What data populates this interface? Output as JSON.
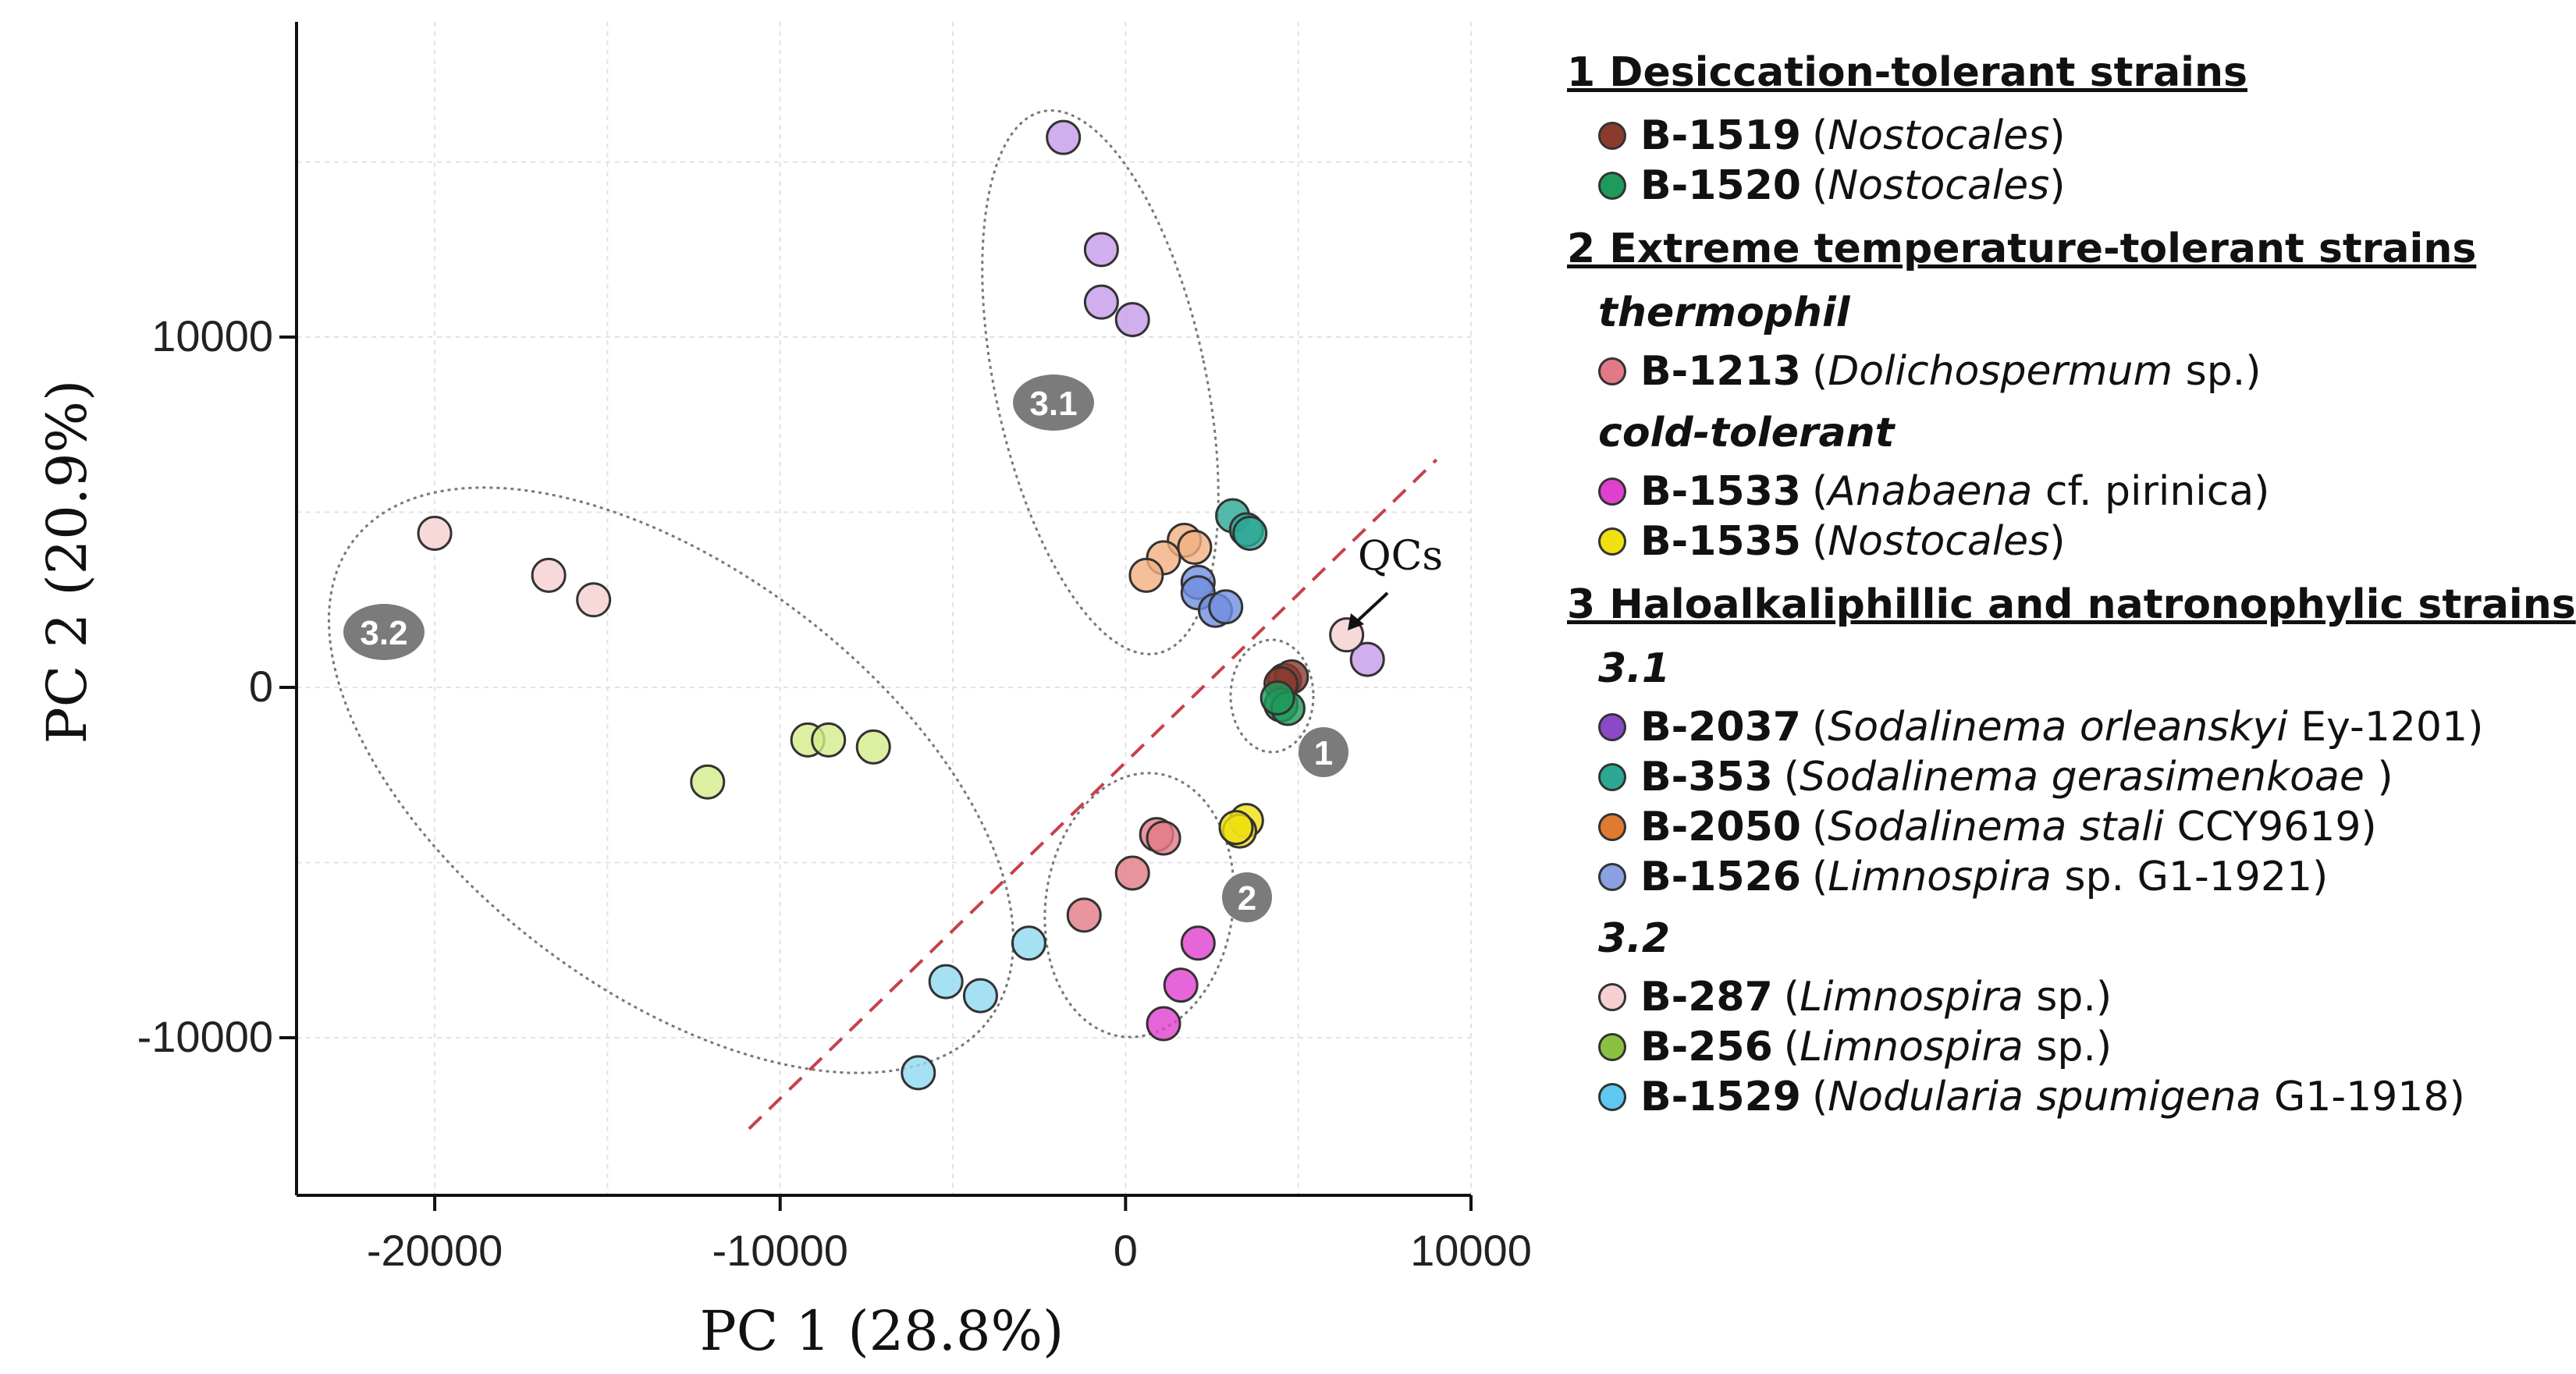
{
  "chart_data": {
    "type": "scatter",
    "title": "",
    "xlabel": "PC 1 (28.8%)",
    "ylabel": "PC 2 (20.9%)",
    "xlim": [
      -24000,
      10000
    ],
    "ylim": [
      -14500,
      19000
    ],
    "x_ticks": [
      -20000,
      -10000,
      0,
      10000
    ],
    "y_ticks": [
      10000,
      0,
      -10000
    ],
    "x_tick_labels": [
      "-20000",
      "-10000",
      "0",
      "10000"
    ],
    "y_tick_labels": [
      "10000",
      "0",
      "-10000"
    ],
    "grid": true,
    "series": [
      {
        "name": "B-1519",
        "color": "#8b3a2e",
        "points": [
          [
            4600,
            200
          ],
          [
            4800,
            300
          ],
          [
            4500,
            100
          ]
        ]
      },
      {
        "name": "B-1520",
        "color": "#1e9a5a",
        "points": [
          [
            4500,
            -500
          ],
          [
            4700,
            -600
          ],
          [
            4400,
            -300
          ]
        ]
      },
      {
        "name": "B-1213",
        "color": "#e27a85",
        "points": [
          [
            900,
            -4200
          ],
          [
            1100,
            -4300
          ],
          [
            200,
            -5300
          ],
          [
            -1200,
            -6500
          ]
        ]
      },
      {
        "name": "B-1533",
        "color": "#e040d0",
        "points": [
          [
            2100,
            -7300
          ],
          [
            1600,
            -8500
          ],
          [
            1100,
            -9600
          ]
        ]
      },
      {
        "name": "B-1535",
        "color": "#f0e010",
        "points": [
          [
            3500,
            -3800
          ],
          [
            3300,
            -4100
          ],
          [
            3200,
            -4000
          ]
        ]
      },
      {
        "name": "B-2037",
        "color": "#c59ae8",
        "points": [
          [
            -1800,
            15700
          ],
          [
            -700,
            12500
          ],
          [
            -700,
            11000
          ],
          [
            200,
            10500
          ],
          [
            7000,
            800
          ]
        ]
      },
      {
        "name": "B-353",
        "color": "#2aa894",
        "points": [
          [
            3100,
            4900
          ],
          [
            3500,
            4500
          ],
          [
            3600,
            4400
          ]
        ]
      },
      {
        "name": "B-2050",
        "color": "#f3b080",
        "points": [
          [
            1700,
            4200
          ],
          [
            2000,
            4000
          ],
          [
            1100,
            3700
          ],
          [
            600,
            3200
          ]
        ]
      },
      {
        "name": "B-1526",
        "color": "#6f8fe0",
        "points": [
          [
            2100,
            3000
          ],
          [
            2100,
            2700
          ],
          [
            2600,
            2200
          ],
          [
            2900,
            2300
          ]
        ]
      },
      {
        "name": "B-287",
        "color": "#f6cfcf",
        "points": [
          [
            -20000,
            4400
          ],
          [
            -16700,
            3200
          ],
          [
            -15400,
            2500
          ],
          [
            6400,
            1500
          ]
        ]
      },
      {
        "name": "B-256",
        "color": "#d4ec8a",
        "points": [
          [
            -12100,
            -2700
          ],
          [
            -9200,
            -1500
          ],
          [
            -8600,
            -1500
          ],
          [
            -7300,
            -1700
          ]
        ]
      },
      {
        "name": "B-1529",
        "color": "#8fd8f0",
        "points": [
          [
            -2800,
            -7300
          ],
          [
            -5200,
            -8400
          ],
          [
            -4200,
            -8800
          ],
          [
            -6000,
            -11000
          ]
        ]
      }
    ],
    "clusters": [
      {
        "label": "3.1"
      },
      {
        "label": "3.2"
      },
      {
        "label": "1"
      },
      {
        "label": "2"
      }
    ],
    "annotations": [
      {
        "text": "QCs"
      }
    ],
    "divider_line": {
      "from": [
        -10900,
        -12600
      ],
      "to": [
        9000,
        6500
      ]
    }
  },
  "legend": {
    "groups": [
      {
        "title": "1 Desiccation-tolerant strains",
        "subgroups": [
          {
            "label": "",
            "items": [
              {
                "code": "B-1519",
                "taxon": "Nostocales",
                "suffix": "",
                "color": "#8b3a2e"
              },
              {
                "code": "B-1520",
                "taxon": "Nostocales",
                "suffix": "",
                "color": "#1e9a5a"
              }
            ]
          }
        ]
      },
      {
        "title": "2 Extreme temperature-tolerant strains",
        "subgroups": [
          {
            "label": "thermophil",
            "items": [
              {
                "code": "B-1213",
                "taxon": "Dolichospermum",
                "suffix": " sp.",
                "color": "#e27a85"
              }
            ]
          },
          {
            "label": "cold-tolerant",
            "items": [
              {
                "code": "B-1533",
                "taxon": "Anabaena",
                "suffix": " cf. pirinica",
                "color": "#e040d0"
              },
              {
                "code": "B-1535",
                "taxon": "Nostocales",
                "suffix": "",
                "color": "#f0e010"
              }
            ]
          }
        ]
      },
      {
        "title": "3 Haloalkaliphillic and natronophylic strains",
        "subgroups": [
          {
            "label": "3.1",
            "items": [
              {
                "code": "B-2037",
                "taxon": "Sodalinema orleanskyi",
                "suffix": " Ey-1201",
                "color": "#8a4ac8"
              },
              {
                "code": "B-353",
                "taxon": "Sodalinema gerasimenkoae",
                "suffix": " ",
                "color": "#2aa894"
              },
              {
                "code": "B-2050",
                "taxon": "Sodalinema stali",
                "suffix": " CCY9619",
                "color": "#e07a30"
              },
              {
                "code": "B-1526",
                "taxon": "Limnospira",
                "suffix": " sp. G1-1921",
                "color": "#8aa0e0"
              }
            ]
          },
          {
            "label": "3.2",
            "items": [
              {
                "code": "B-287",
                "taxon": "Limnospira",
                "suffix": " sp.",
                "color": "#f6cfcf"
              },
              {
                "code": "B-256",
                "taxon": "Limnospira",
                "suffix": " sp.",
                "color": "#8cc040"
              },
              {
                "code": "B-1529",
                "taxon": "Nodularia spumigena",
                "suffix": " G1-1918",
                "color": "#5ec8f0"
              }
            ]
          }
        ]
      }
    ]
  }
}
